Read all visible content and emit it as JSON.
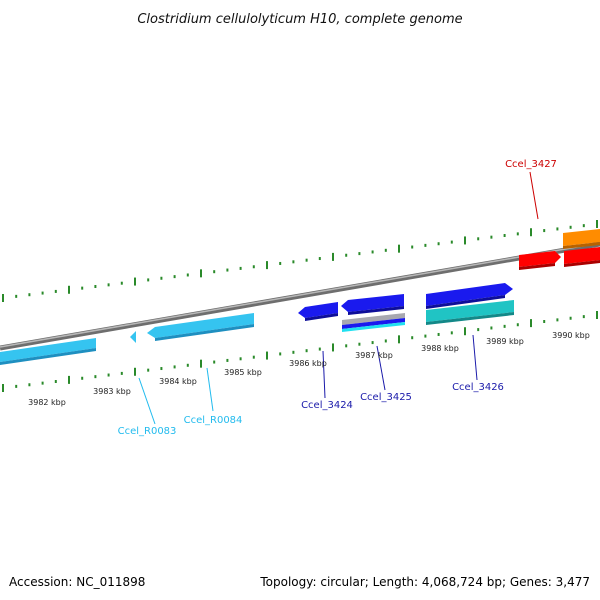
{
  "title": "Clostridium cellulolyticum H10, complete genome",
  "accession": "Accession: NC_011898",
  "topology": "Topology: circular; Length: 4,068,724 bp; Genes: 3,477",
  "colors": {
    "backbone": "#8c8c8c",
    "ticks": "#2a8a2a",
    "rna": "#35c4f0",
    "cds_blue": "#1a1aee",
    "cds_teal": "#20c4c4",
    "cds_red": "#ff0000",
    "cds_orange": "#ff8c00",
    "label_rna": "#22bbee",
    "label_cds": "#1a1aaa",
    "label_red": "#cc0000"
  },
  "kbp_labels": [
    "3982 kbp",
    "3983 kbp",
    "3984 kbp",
    "3985 kbp",
    "3986 kbp",
    "3987 kbp",
    "3988 kbp",
    "3989 kbp",
    "3990 kbp"
  ],
  "gene_labels": {
    "r0083": "Ccel_R0083",
    "r0084": "Ccel_R0084",
    "g3424": "Ccel_3424",
    "g3425": "Ccel_3425",
    "g3426": "Ccel_3426",
    "g3427": "Ccel_3427"
  }
}
